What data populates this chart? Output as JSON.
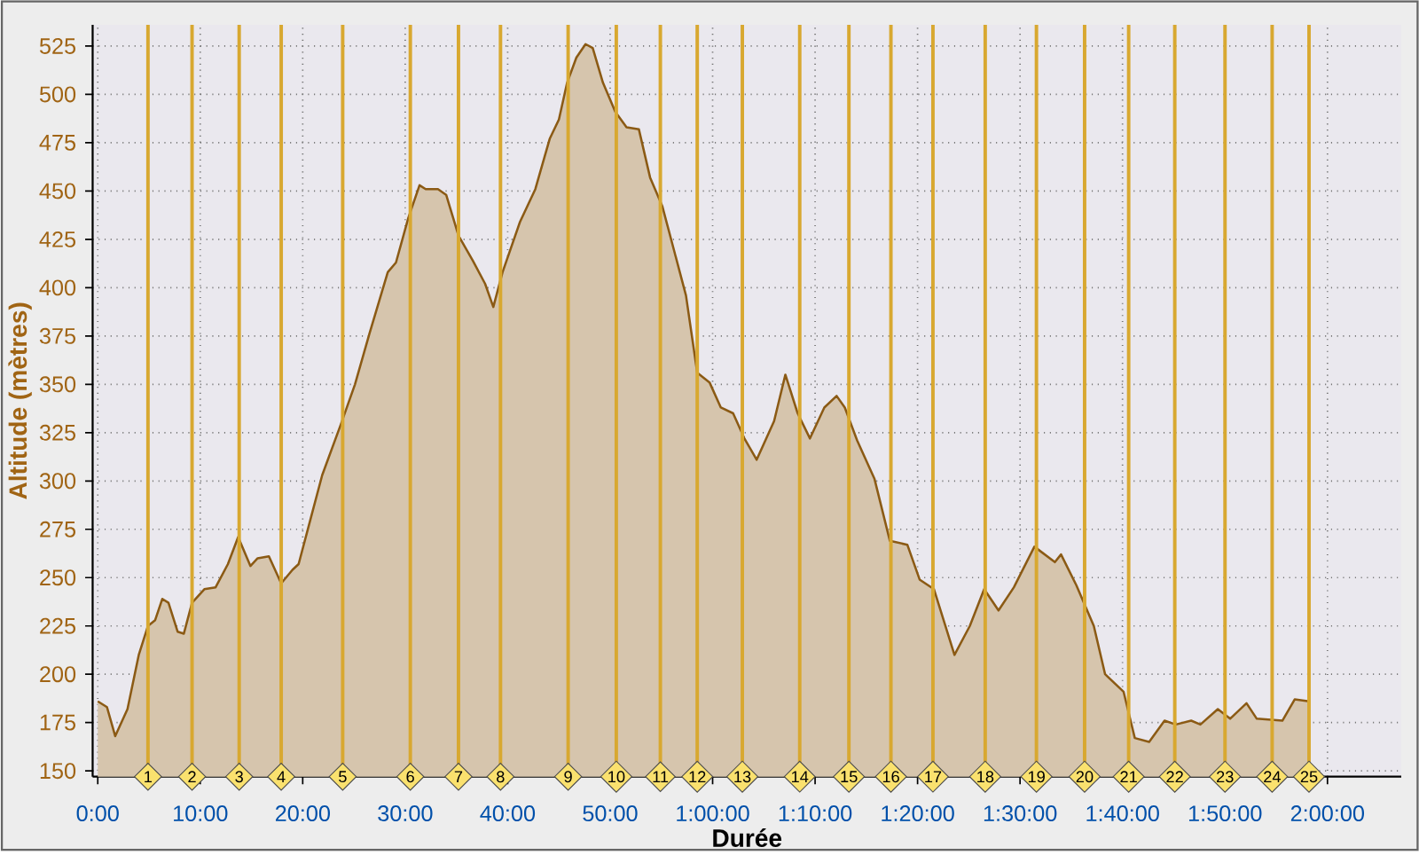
{
  "chart_data": {
    "type": "area",
    "xlabel": "Durée",
    "ylabel": "Altitude (mètres)",
    "color": "#8b5a14",
    "x": [
      0,
      0.9,
      1.7,
      2.9,
      4.0,
      4.9,
      5.6,
      6.3,
      6.9,
      7.8,
      8.4,
      9.2,
      10.4,
      11.5,
      12.7,
      13.7,
      14.9,
      15.6,
      16.7,
      17.9,
      19.0,
      19.6,
      20.8,
      21.9,
      23.7,
      25.1,
      26.5,
      28.3,
      29.1,
      30.3,
      31.4,
      32.0,
      33.2,
      34.0,
      35.2,
      36.6,
      37.8,
      38.6,
      39.5,
      41.2,
      42.7,
      44.1,
      45.0,
      45.8,
      46.7,
      47.6,
      48.3,
      49.3,
      50.5,
      51.6,
      52.8,
      53.9,
      55.1,
      56.2,
      57.4,
      58.5,
      59.7,
      60.8,
      62.0,
      63.1,
      64.3,
      66.0,
      67.1,
      68.3,
      69.5,
      70.9,
      72.1,
      72.9,
      74.1,
      75.8,
      77.3,
      79.0,
      80.2,
      81.6,
      83.6,
      85.1,
      86.5,
      87.9,
      89.4,
      91.4,
      93.4,
      94.0,
      95.5,
      97.2,
      98.3,
      100.1,
      101.2,
      102.6,
      104.1,
      105.2,
      106.7,
      107.6,
      109.3,
      110.5,
      112.1,
      113.1,
      115.6,
      116.8,
      118.2
    ],
    "values": [
      186,
      183,
      168,
      182,
      210,
      225,
      228,
      239,
      237,
      222,
      221,
      237,
      244,
      245,
      257,
      271,
      256,
      260,
      261,
      247,
      254,
      257,
      281,
      303,
      329,
      350,
      376,
      408,
      413,
      436,
      453,
      451,
      451,
      448,
      427,
      414,
      402,
      390,
      408,
      434,
      451,
      477,
      487,
      506,
      519,
      526,
      524,
      506,
      491,
      483,
      482,
      457,
      442,
      420,
      396,
      356,
      351,
      338,
      335,
      322,
      311,
      331,
      355,
      335,
      322,
      338,
      344,
      338,
      321,
      301,
      269,
      267,
      249,
      244,
      210,
      225,
      244,
      233,
      245,
      266,
      258,
      262,
      246,
      225,
      200,
      191,
      167,
      165,
      176,
      174,
      176,
      174,
      182,
      177,
      185,
      177,
      176,
      187,
      186
    ],
    "xlim": [
      -0.5,
      127.2
    ],
    "ylim": [
      147,
      536
    ],
    "xticks": [
      {
        "value": 0,
        "label": "0:00"
      },
      {
        "value": 10,
        "label": "10:00"
      },
      {
        "value": 20,
        "label": "20:00"
      },
      {
        "value": 30,
        "label": "30:00"
      },
      {
        "value": 40,
        "label": "40:00"
      },
      {
        "value": 50,
        "label": "50:00"
      },
      {
        "value": 60,
        "label": "1:00:00"
      },
      {
        "value": 70,
        "label": "1:10:00"
      },
      {
        "value": 80,
        "label": "1:20:00"
      },
      {
        "value": 90,
        "label": "1:30:00"
      },
      {
        "value": 100,
        "label": "1:40:00"
      },
      {
        "value": 110,
        "label": "1:50:00"
      },
      {
        "value": 120,
        "label": "2:00:00"
      }
    ],
    "yticks": [
      150,
      175,
      200,
      225,
      250,
      275,
      300,
      325,
      350,
      375,
      400,
      425,
      450,
      475,
      500,
      525
    ],
    "grid": true,
    "annotations": [
      {
        "text": "1",
        "x": 4.9,
        "y": 147
      },
      {
        "text": "2",
        "x": 9.2,
        "y": 147
      },
      {
        "text": "3",
        "x": 13.8,
        "y": 147
      },
      {
        "text": "4",
        "x": 17.9,
        "y": 147
      },
      {
        "text": "5",
        "x": 23.9,
        "y": 147
      },
      {
        "text": "6",
        "x": 30.5,
        "y": 147
      },
      {
        "text": "7",
        "x": 35.2,
        "y": 147
      },
      {
        "text": "8",
        "x": 39.3,
        "y": 147
      },
      {
        "text": "9",
        "x": 45.9,
        "y": 147
      },
      {
        "text": "10",
        "x": 50.6,
        "y": 147
      },
      {
        "text": "11",
        "x": 54.9,
        "y": 147
      },
      {
        "text": "12",
        "x": 58.5,
        "y": 147
      },
      {
        "text": "13",
        "x": 62.9,
        "y": 147
      },
      {
        "text": "14",
        "x": 68.5,
        "y": 147
      },
      {
        "text": "15",
        "x": 73.3,
        "y": 147
      },
      {
        "text": "16",
        "x": 77.4,
        "y": 147
      },
      {
        "text": "17",
        "x": 81.5,
        "y": 147
      },
      {
        "text": "18",
        "x": 86.6,
        "y": 147
      },
      {
        "text": "19",
        "x": 91.6,
        "y": 147
      },
      {
        "text": "20",
        "x": 96.3,
        "y": 147
      },
      {
        "text": "21",
        "x": 100.6,
        "y": 147
      },
      {
        "text": "22",
        "x": 105.1,
        "y": 147
      },
      {
        "text": "23",
        "x": 110.0,
        "y": 147
      },
      {
        "text": "24",
        "x": 114.6,
        "y": 147
      },
      {
        "text": "25",
        "x": 118.2,
        "y": 147
      }
    ],
    "ref_lines": [
      {
        "axis": "x",
        "value": 4.9,
        "color": "#d8a830"
      },
      {
        "axis": "x",
        "value": 9.2,
        "color": "#d8a830"
      },
      {
        "axis": "x",
        "value": 13.8,
        "color": "#d8a830"
      },
      {
        "axis": "x",
        "value": 17.9,
        "color": "#d8a830"
      },
      {
        "axis": "x",
        "value": 23.9,
        "color": "#d8a830"
      },
      {
        "axis": "x",
        "value": 30.5,
        "color": "#d8a830"
      },
      {
        "axis": "x",
        "value": 35.2,
        "color": "#d8a830"
      },
      {
        "axis": "x",
        "value": 39.3,
        "color": "#d8a830"
      },
      {
        "axis": "x",
        "value": 45.9,
        "color": "#d8a830"
      },
      {
        "axis": "x",
        "value": 50.6,
        "color": "#d8a830"
      },
      {
        "axis": "x",
        "value": 54.9,
        "color": "#d8a830"
      },
      {
        "axis": "x",
        "value": 58.5,
        "color": "#d8a830"
      },
      {
        "axis": "x",
        "value": 62.9,
        "color": "#d8a830"
      },
      {
        "axis": "x",
        "value": 68.5,
        "color": "#d8a830"
      },
      {
        "axis": "x",
        "value": 73.3,
        "color": "#d8a830"
      },
      {
        "axis": "x",
        "value": 77.4,
        "color": "#d8a830"
      },
      {
        "axis": "x",
        "value": 81.5,
        "color": "#d8a830"
      },
      {
        "axis": "x",
        "value": 86.6,
        "color": "#d8a830"
      },
      {
        "axis": "x",
        "value": 91.6,
        "color": "#d8a830"
      },
      {
        "axis": "x",
        "value": 96.3,
        "color": "#d8a830"
      },
      {
        "axis": "x",
        "value": 100.6,
        "color": "#d8a830"
      },
      {
        "axis": "x",
        "value": 105.1,
        "color": "#d8a830"
      },
      {
        "axis": "x",
        "value": 110.0,
        "color": "#d8a830"
      },
      {
        "axis": "x",
        "value": 114.6,
        "color": "#d8a830"
      },
      {
        "axis": "x",
        "value": 118.2,
        "color": "#d8a830"
      }
    ]
  }
}
